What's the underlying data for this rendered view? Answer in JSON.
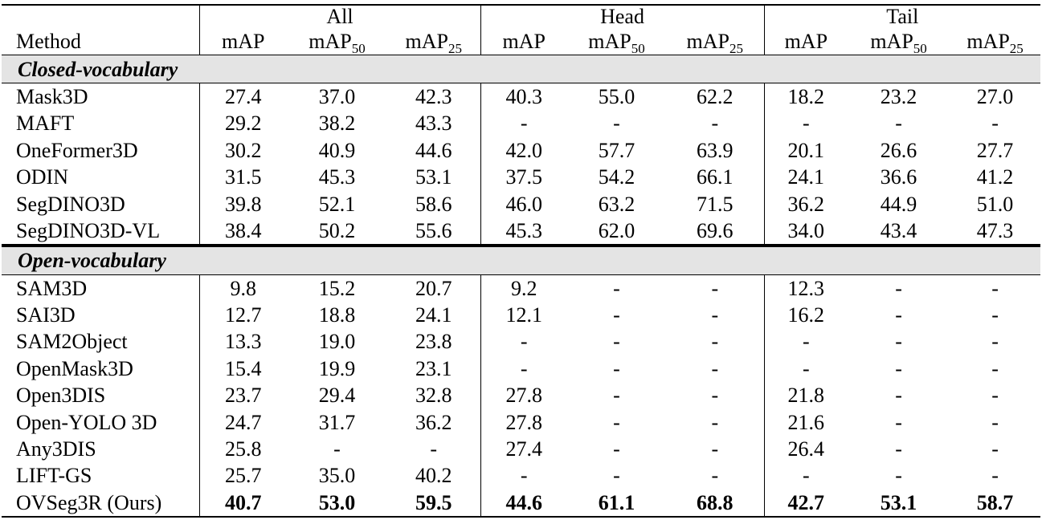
{
  "table": {
    "groups": [
      "All",
      "Head",
      "Tail"
    ],
    "method_header": "Method",
    "subheaders": [
      {
        "base": "mAP",
        "sub": ""
      },
      {
        "base": "mAP",
        "sub": "50"
      },
      {
        "base": "mAP",
        "sub": "25"
      },
      {
        "base": "mAP",
        "sub": ""
      },
      {
        "base": "mAP",
        "sub": "50"
      },
      {
        "base": "mAP",
        "sub": "25"
      },
      {
        "base": "mAP",
        "sub": ""
      },
      {
        "base": "mAP",
        "sub": "50"
      },
      {
        "base": "mAP",
        "sub": "25"
      }
    ],
    "sections": [
      {
        "title": "Closed-vocabulary",
        "rows": [
          {
            "method": "Mask3D",
            "values": [
              "27.4",
              "37.0",
              "42.3",
              "40.3",
              "55.0",
              "62.2",
              "18.2",
              "23.2",
              "27.0"
            ]
          },
          {
            "method": "MAFT",
            "values": [
              "29.2",
              "38.2",
              "43.3",
              "-",
              "-",
              "-",
              "-",
              "-",
              "-"
            ]
          },
          {
            "method": "OneFormer3D",
            "values": [
              "30.2",
              "40.9",
              "44.6",
              "42.0",
              "57.7",
              "63.9",
              "20.1",
              "26.6",
              "27.7"
            ]
          },
          {
            "method": "ODIN",
            "values": [
              "31.5",
              "45.3",
              "53.1",
              "37.5",
              "54.2",
              "66.1",
              "24.1",
              "36.6",
              "41.2"
            ]
          },
          {
            "method": "SegDINO3D",
            "values": [
              "39.8",
              "52.1",
              "58.6",
              "46.0",
              "63.2",
              "71.5",
              "36.2",
              "44.9",
              "51.0"
            ]
          },
          {
            "method": "SegDINO3D-VL",
            "values": [
              "38.4",
              "50.2",
              "55.6",
              "45.3",
              "62.0",
              "69.6",
              "34.0",
              "43.4",
              "47.3"
            ]
          }
        ]
      },
      {
        "title": "Open-vocabulary",
        "rows": [
          {
            "method": "SAM3D",
            "values": [
              "9.8",
              "15.2",
              "20.7",
              "9.2",
              "-",
              "-",
              "12.3",
              "-",
              "-"
            ]
          },
          {
            "method": "SAI3D",
            "values": [
              "12.7",
              "18.8",
              "24.1",
              "12.1",
              "-",
              "-",
              "16.2",
              "-",
              "-"
            ]
          },
          {
            "method": "SAM2Object",
            "values": [
              "13.3",
              "19.0",
              "23.8",
              "-",
              "-",
              "-",
              "-",
              "-",
              "-"
            ]
          },
          {
            "method": "OpenMask3D",
            "values": [
              "15.4",
              "19.9",
              "23.1",
              "-",
              "-",
              "-",
              "-",
              "-",
              "-"
            ]
          },
          {
            "method": "Open3DIS",
            "values": [
              "23.7",
              "29.4",
              "32.8",
              "27.8",
              "-",
              "-",
              "21.8",
              "-",
              "-"
            ]
          },
          {
            "method": "Open-YOLO 3D",
            "values": [
              "24.7",
              "31.7",
              "36.2",
              "27.8",
              "-",
              "-",
              "21.6",
              "-",
              "-"
            ]
          },
          {
            "method": "Any3DIS",
            "values": [
              "25.8",
              "-",
              "-",
              "27.4",
              "-",
              "-",
              "26.4",
              "-",
              "-"
            ]
          },
          {
            "method": "LIFT-GS",
            "values": [
              "25.7",
              "35.0",
              "40.2",
              "-",
              "-",
              "-",
              "-",
              "-",
              "-"
            ]
          },
          {
            "method": "OVSeg3R (Ours)",
            "values": [
              "40.7",
              "53.0",
              "59.5",
              "44.6",
              "61.1",
              "68.8",
              "42.7",
              "53.1",
              "58.7"
            ],
            "bold": true
          }
        ]
      }
    ],
    "colors": {
      "section_bg": "#e4e4e4",
      "rule": "#000000"
    }
  }
}
